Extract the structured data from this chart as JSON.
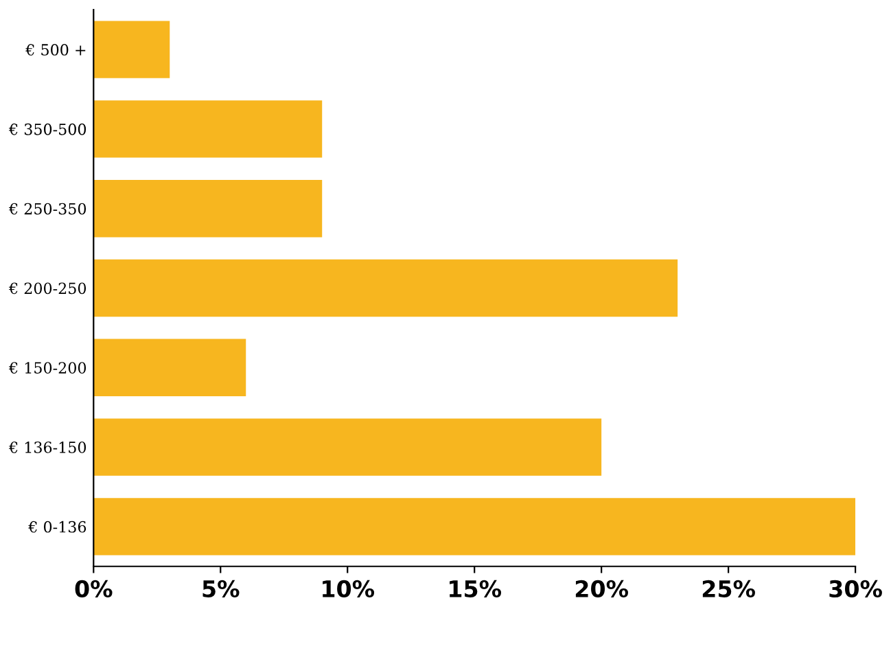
{
  "chart_data": {
    "type": "bar",
    "orientation": "horizontal",
    "categories": [
      "€ 500 +",
      "€ 350-500",
      "€ 250-350",
      "€ 200-250",
      "€ 150-200",
      "€ 136-150",
      "€ 0-136"
    ],
    "values": [
      3,
      9,
      9,
      23,
      6,
      20,
      30
    ],
    "color": "#f7b61f",
    "xlim": [
      0,
      30
    ],
    "xticks": [
      {
        "value": 0,
        "label": "0%"
      },
      {
        "value": 5,
        "label": "5%"
      },
      {
        "value": 10,
        "label": "10%"
      },
      {
        "value": 15,
        "label": "15%"
      },
      {
        "value": 20,
        "label": "20%"
      },
      {
        "value": 25,
        "label": "25%"
      },
      {
        "value": 30,
        "label": "30%"
      }
    ],
    "grid": false,
    "legend": false
  }
}
